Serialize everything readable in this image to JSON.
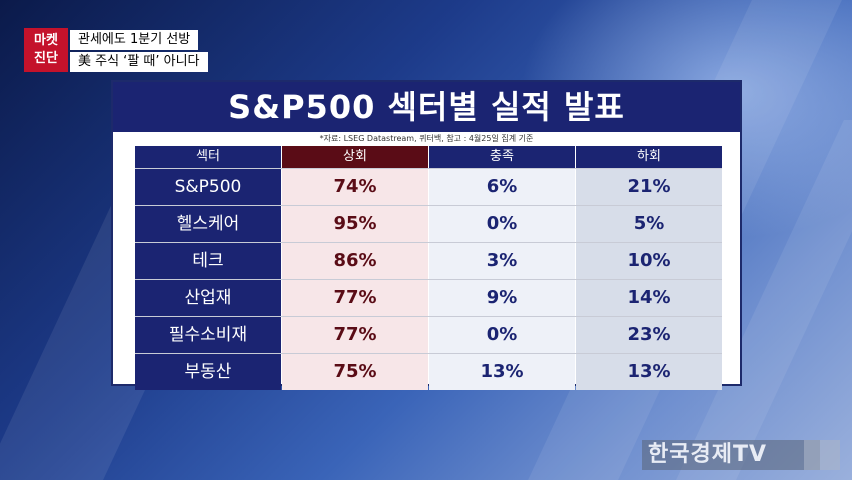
{
  "ticker": {
    "badge_line1": "마켓",
    "badge_line2": "진단",
    "headline1": "관세에도 1분기 선방",
    "headline2": "美 주식 ‘팔 때’ 아니다"
  },
  "panel": {
    "title": "S&P500 섹터별 실적 발표",
    "source": "*자료: LSEG Datastream, 퀴터백, 참고 : 4월25일 집계 기준"
  },
  "table": {
    "headers": [
      "섹터",
      "상회",
      "충족",
      "하회"
    ],
    "rows": [
      [
        "S&P500",
        "74%",
        "6%",
        "21%"
      ],
      [
        "헬스케어",
        "95%",
        "0%",
        "5%"
      ],
      [
        "테크",
        "86%",
        "3%",
        "10%"
      ],
      [
        "산업재",
        "77%",
        "9%",
        "14%"
      ],
      [
        "필수소비재",
        "77%",
        "0%",
        "23%"
      ],
      [
        "부동산",
        "75%",
        "13%",
        "13%"
      ]
    ]
  },
  "brand": {
    "logo_text": "한국경제TV"
  },
  "colors": {
    "navy": "#1b2472",
    "maroon": "#5a0c16",
    "badge_red": "#c4122b"
  }
}
